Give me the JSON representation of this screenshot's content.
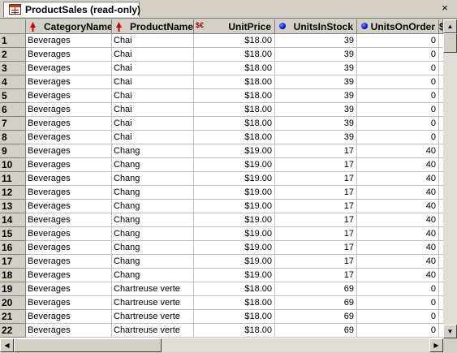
{
  "tab": {
    "title": "ProductSales (read-only)",
    "close": "×"
  },
  "columns": [
    {
      "name": "CategoryName",
      "icon": "red-key-icon"
    },
    {
      "name": "ProductName",
      "icon": "red-key-icon"
    },
    {
      "name": "UnitPrice",
      "icon": "money-icon",
      "icon_text": "$€"
    },
    {
      "name": "UnitsInStock",
      "icon": "blue-dot-icon"
    },
    {
      "name": "UnitsOnOrder",
      "icon": "blue-dot-icon"
    },
    {
      "name": "$",
      "icon": ""
    }
  ],
  "rows": [
    {
      "n": "1",
      "category": "Beverages",
      "product": "Chai",
      "price": "$18.00",
      "stock": "39",
      "order": "0"
    },
    {
      "n": "2",
      "category": "Beverages",
      "product": "Chai",
      "price": "$18.00",
      "stock": "39",
      "order": "0"
    },
    {
      "n": "3",
      "category": "Beverages",
      "product": "Chai",
      "price": "$18.00",
      "stock": "39",
      "order": "0"
    },
    {
      "n": "4",
      "category": "Beverages",
      "product": "Chai",
      "price": "$18.00",
      "stock": "39",
      "order": "0"
    },
    {
      "n": "5",
      "category": "Beverages",
      "product": "Chai",
      "price": "$18.00",
      "stock": "39",
      "order": "0"
    },
    {
      "n": "6",
      "category": "Beverages",
      "product": "Chai",
      "price": "$18.00",
      "stock": "39",
      "order": "0"
    },
    {
      "n": "7",
      "category": "Beverages",
      "product": "Chai",
      "price": "$18.00",
      "stock": "39",
      "order": "0"
    },
    {
      "n": "8",
      "category": "Beverages",
      "product": "Chai",
      "price": "$18.00",
      "stock": "39",
      "order": "0"
    },
    {
      "n": "9",
      "category": "Beverages",
      "product": "Chang",
      "price": "$19.00",
      "stock": "17",
      "order": "40"
    },
    {
      "n": "10",
      "category": "Beverages",
      "product": "Chang",
      "price": "$19.00",
      "stock": "17",
      "order": "40"
    },
    {
      "n": "11",
      "category": "Beverages",
      "product": "Chang",
      "price": "$19.00",
      "stock": "17",
      "order": "40"
    },
    {
      "n": "12",
      "category": "Beverages",
      "product": "Chang",
      "price": "$19.00",
      "stock": "17",
      "order": "40"
    },
    {
      "n": "13",
      "category": "Beverages",
      "product": "Chang",
      "price": "$19.00",
      "stock": "17",
      "order": "40"
    },
    {
      "n": "14",
      "category": "Beverages",
      "product": "Chang",
      "price": "$19.00",
      "stock": "17",
      "order": "40"
    },
    {
      "n": "15",
      "category": "Beverages",
      "product": "Chang",
      "price": "$19.00",
      "stock": "17",
      "order": "40"
    },
    {
      "n": "16",
      "category": "Beverages",
      "product": "Chang",
      "price": "$19.00",
      "stock": "17",
      "order": "40"
    },
    {
      "n": "17",
      "category": "Beverages",
      "product": "Chang",
      "price": "$19.00",
      "stock": "17",
      "order": "40"
    },
    {
      "n": "18",
      "category": "Beverages",
      "product": "Chang",
      "price": "$19.00",
      "stock": "17",
      "order": "40"
    },
    {
      "n": "19",
      "category": "Beverages",
      "product": "Chartreuse verte",
      "price": "$18.00",
      "stock": "69",
      "order": "0"
    },
    {
      "n": "20",
      "category": "Beverages",
      "product": "Chartreuse verte",
      "price": "$18.00",
      "stock": "69",
      "order": "0"
    },
    {
      "n": "21",
      "category": "Beverages",
      "product": "Chartreuse verte",
      "price": "$18.00",
      "stock": "69",
      "order": "0"
    },
    {
      "n": "22",
      "category": "Beverages",
      "product": "Chartreuse verte",
      "price": "$18.00",
      "stock": "69",
      "order": "0"
    }
  ],
  "colors": {
    "chrome": "#d4d0c8",
    "key_red": "#c00000",
    "dot_blue": "#0000c0"
  }
}
